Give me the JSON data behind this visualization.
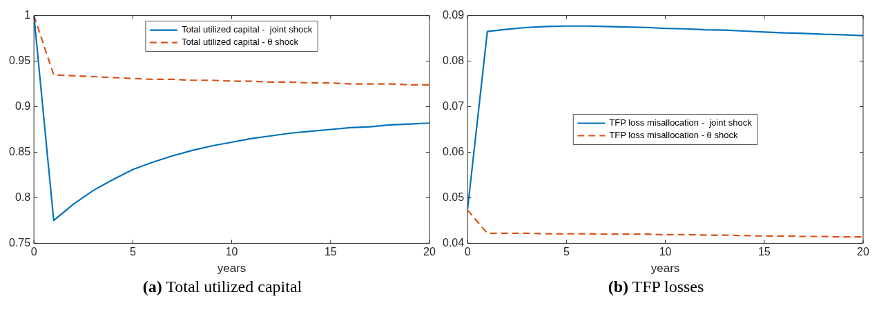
{
  "chart_data": [
    {
      "type": "line",
      "title": "(a) Total utilized capital",
      "xlabel": "years",
      "x": [
        0,
        1,
        2,
        3,
        4,
        5,
        6,
        7,
        8,
        9,
        10,
        11,
        12,
        13,
        14,
        15,
        16,
        17,
        18,
        19,
        20
      ],
      "xlim": [
        0,
        20
      ],
      "xticks": [
        0,
        5,
        10,
        15,
        20
      ],
      "ylim": [
        0.75,
        1
      ],
      "yticks": [
        0.75,
        0.8,
        0.85,
        0.9,
        0.95,
        1
      ],
      "grid": false,
      "legend": "top",
      "marker": "none",
      "series": [
        {
          "name": "Total utilized capital -  joint shock",
          "color": "#0072bd",
          "line_style": "solid",
          "values": [
            1,
            0.775,
            0.793,
            0.808,
            0.82,
            0.831,
            0.839,
            0.846,
            0.852,
            0.857,
            0.861,
            0.865,
            0.868,
            0.871,
            0.873,
            0.875,
            0.877,
            0.878,
            0.88,
            0.881,
            0.882
          ]
        },
        {
          "name": "Total utilized capital - θ shock",
          "color": "#d95319",
          "line_style": "dashed",
          "values": [
            1,
            0.935,
            0.934,
            0.933,
            0.932,
            0.931,
            0.93,
            0.93,
            0.929,
            0.929,
            0.928,
            0.928,
            0.927,
            0.927,
            0.926,
            0.926,
            0.925,
            0.925,
            0.925,
            0.924,
            0.924
          ]
        }
      ]
    },
    {
      "type": "line",
      "title": "(b) TFP losses",
      "xlabel": "years",
      "x": [
        0,
        1,
        2,
        3,
        4,
        5,
        6,
        7,
        8,
        9,
        10,
        11,
        12,
        13,
        14,
        15,
        16,
        17,
        18,
        19,
        20
      ],
      "xlim": [
        0,
        20
      ],
      "xticks": [
        0,
        5,
        10,
        15,
        20
      ],
      "ylim": [
        0.04,
        0.09
      ],
      "yticks": [
        0.04,
        0.05,
        0.06,
        0.07,
        0.08,
        0.09
      ],
      "grid": false,
      "legend": "center",
      "marker": "none",
      "series": [
        {
          "name": "TFP loss misallocation -  joint shock",
          "color": "#0072bd",
          "line_style": "solid",
          "values": [
            0.0475,
            0.0865,
            0.087,
            0.0874,
            0.0876,
            0.0877,
            0.0877,
            0.0876,
            0.0875,
            0.0874,
            0.0872,
            0.0871,
            0.0869,
            0.0868,
            0.0866,
            0.0864,
            0.0862,
            0.0861,
            0.0859,
            0.0858,
            0.0856
          ]
        },
        {
          "name": "TFP loss misallocation - θ shock",
          "color": "#d95319",
          "line_style": "dashed",
          "values": [
            0.0473,
            0.0422,
            0.0422,
            0.0422,
            0.0421,
            0.0421,
            0.0421,
            0.042,
            0.042,
            0.042,
            0.0419,
            0.0419,
            0.0418,
            0.0418,
            0.0417,
            0.0416,
            0.0416,
            0.0415,
            0.0415,
            0.0414,
            0.0414
          ]
        }
      ]
    }
  ]
}
